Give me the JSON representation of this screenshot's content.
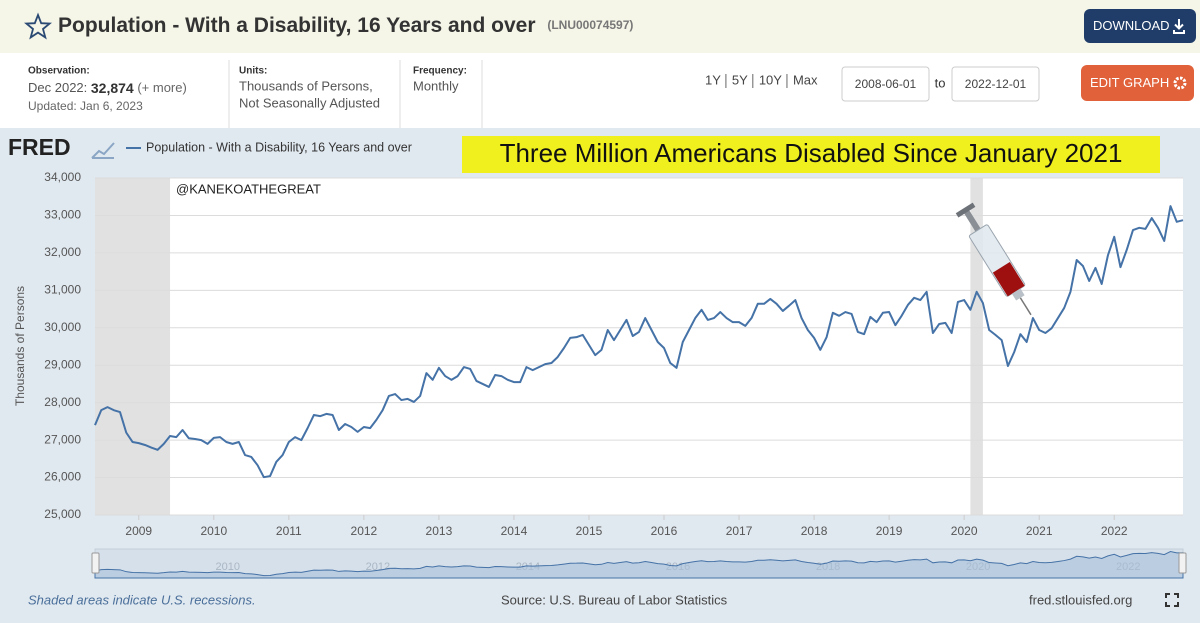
{
  "header": {
    "title": "Population - With a Disability, 16 Years and over",
    "series_id": "(LNU00074597)",
    "download": "DOWNLOAD",
    "observation_label": "Observation:",
    "observation_date": "Dec 2022:",
    "observation_value": "32,874",
    "observation_more": "(+ more)",
    "updated": "Updated: Jan 6, 2023",
    "units_label": "Units:",
    "units": [
      "Thousands of Persons,",
      "Not Seasonally Adjusted"
    ],
    "frequency_label": "Frequency:",
    "frequency": "Monthly",
    "ranges": [
      "1Y",
      "5Y",
      "10Y",
      "Max"
    ],
    "start_date": "2008-06-01",
    "to": "to",
    "end_date": "2022-12-01",
    "edit": "EDIT GRAPH"
  },
  "chart_data": {
    "type": "line",
    "logo": "FRED",
    "title": "Three Million Americans Disabled Since January 2021",
    "watermark": "@KANEKOATHEGREAT",
    "ylabel": "Thousands of Persons",
    "grid": true,
    "x": [
      "2008-06",
      "2008-07",
      "2008-08",
      "2008-09",
      "2008-10",
      "2008-11",
      "2008-12",
      "2009-01",
      "2009-02",
      "2009-03",
      "2009-04",
      "2009-05",
      "2009-06",
      "2009-07",
      "2009-08",
      "2009-09",
      "2009-10",
      "2009-11",
      "2009-12",
      "2010-01",
      "2010-02",
      "2010-03",
      "2010-04",
      "2010-05",
      "2010-06",
      "2010-07",
      "2010-08",
      "2010-09",
      "2010-10",
      "2010-11",
      "2010-12",
      "2011-01",
      "2011-02",
      "2011-03",
      "2011-04",
      "2011-05",
      "2011-06",
      "2011-07",
      "2011-08",
      "2011-09",
      "2011-10",
      "2011-11",
      "2011-12",
      "2012-01",
      "2012-02",
      "2012-03",
      "2012-04",
      "2012-05",
      "2012-06",
      "2012-07",
      "2012-08",
      "2012-09",
      "2012-10",
      "2012-11",
      "2012-12",
      "2013-01",
      "2013-02",
      "2013-03",
      "2013-04",
      "2013-05",
      "2013-06",
      "2013-07",
      "2013-08",
      "2013-09",
      "2013-10",
      "2013-11",
      "2013-12",
      "2014-01",
      "2014-02",
      "2014-03",
      "2014-04",
      "2014-05",
      "2014-06",
      "2014-07",
      "2014-08",
      "2014-09",
      "2014-10",
      "2014-11",
      "2014-12",
      "2015-01",
      "2015-02",
      "2015-03",
      "2015-04",
      "2015-05",
      "2015-06",
      "2015-07",
      "2015-08",
      "2015-09",
      "2015-10",
      "2015-11",
      "2015-12",
      "2016-01",
      "2016-02",
      "2016-03",
      "2016-04",
      "2016-05",
      "2016-06",
      "2016-07",
      "2016-08",
      "2016-09",
      "2016-10",
      "2016-11",
      "2016-12",
      "2017-01",
      "2017-02",
      "2017-03",
      "2017-04",
      "2017-05",
      "2017-06",
      "2017-07",
      "2017-08",
      "2017-09",
      "2017-10",
      "2017-11",
      "2017-12",
      "2018-01",
      "2018-02",
      "2018-03",
      "2018-04",
      "2018-05",
      "2018-06",
      "2018-07",
      "2018-08",
      "2018-09",
      "2018-10",
      "2018-11",
      "2018-12",
      "2019-01",
      "2019-02",
      "2019-03",
      "2019-04",
      "2019-05",
      "2019-06",
      "2019-07",
      "2019-08",
      "2019-09",
      "2019-10",
      "2019-11",
      "2019-12",
      "2020-01",
      "2020-02",
      "2020-03",
      "2020-04",
      "2020-05",
      "2020-06",
      "2020-07",
      "2020-08",
      "2020-09",
      "2020-10",
      "2020-11",
      "2020-12",
      "2021-01",
      "2021-02",
      "2021-03",
      "2021-04",
      "2021-05",
      "2021-06",
      "2021-07",
      "2021-08",
      "2021-09",
      "2021-10",
      "2021-11",
      "2021-12",
      "2022-01",
      "2022-02",
      "2022-03",
      "2022-04",
      "2022-05",
      "2022-06",
      "2022-07",
      "2022-08",
      "2022-09",
      "2022-10",
      "2022-11",
      "2022-12"
    ],
    "series": [
      {
        "name": "Population - With a Disability, 16 Years and over",
        "color": "#4572a7",
        "values": [
          27400,
          27800,
          27880,
          27800,
          27750,
          27200,
          26950,
          26920,
          26870,
          26800,
          26740,
          26900,
          27110,
          27080,
          27270,
          27050,
          27030,
          27000,
          26900,
          27060,
          27080,
          26950,
          26900,
          26950,
          26600,
          26550,
          26330,
          26010,
          26040,
          26420,
          26600,
          26950,
          27080,
          27000,
          27320,
          27670,
          27640,
          27700,
          27670,
          27270,
          27430,
          27350,
          27220,
          27350,
          27320,
          27540,
          27800,
          28180,
          28230,
          28070,
          28100,
          28020,
          28180,
          28790,
          28610,
          28930,
          28710,
          28610,
          28710,
          28950,
          28900,
          28580,
          28500,
          28420,
          28740,
          28710,
          28610,
          28550,
          28550,
          28950,
          28870,
          28950,
          29030,
          29060,
          29220,
          29460,
          29730,
          29750,
          29810,
          29540,
          29270,
          29410,
          29940,
          29670,
          29940,
          30210,
          29780,
          29890,
          30260,
          29940,
          29620,
          29460,
          29060,
          28930,
          29620,
          29940,
          30260,
          30480,
          30210,
          30260,
          30420,
          30260,
          30150,
          30150,
          30050,
          30260,
          30640,
          30640,
          30770,
          30640,
          30450,
          30590,
          30740,
          30260,
          29940,
          29730,
          29410,
          29750,
          30400,
          30320,
          30420,
          30370,
          29890,
          29830,
          30290,
          30150,
          30400,
          30420,
          30070,
          30320,
          30610,
          30800,
          30740,
          30960,
          29860,
          30100,
          30130,
          29860,
          30690,
          30740,
          30480,
          30960,
          30660,
          29940,
          29810,
          29670,
          28980,
          29350,
          29830,
          29620,
          30260,
          29940,
          29860,
          29990,
          30260,
          30530,
          30960,
          31810,
          31650,
          31250,
          31600,
          31170,
          31940,
          32430,
          31620,
          32080,
          32610,
          32670,
          32640,
          32930,
          32670,
          32320,
          33250,
          32830,
          32874
        ]
      }
    ],
    "xlim": [
      "2008-06",
      "2022-12"
    ],
    "xticks": [
      {
        "value": "2009-01",
        "label": "2009"
      },
      {
        "value": "2010-01",
        "label": "2010"
      },
      {
        "value": "2011-01",
        "label": "2011"
      },
      {
        "value": "2012-01",
        "label": "2012"
      },
      {
        "value": "2013-01",
        "label": "2013"
      },
      {
        "value": "2014-01",
        "label": "2014"
      },
      {
        "value": "2015-01",
        "label": "2015"
      },
      {
        "value": "2016-01",
        "label": "2016"
      },
      {
        "value": "2017-01",
        "label": "2017"
      },
      {
        "value": "2018-01",
        "label": "2018"
      },
      {
        "value": "2019-01",
        "label": "2019"
      },
      {
        "value": "2020-01",
        "label": "2020"
      },
      {
        "value": "2021-01",
        "label": "2021"
      },
      {
        "value": "2022-01",
        "label": "2022"
      }
    ],
    "ylim": [
      25000,
      34000
    ],
    "yticks": [
      {
        "value": 25000,
        "label": "25,000"
      },
      {
        "value": 26000,
        "label": "26,000"
      },
      {
        "value": 27000,
        "label": "27,000"
      },
      {
        "value": 28000,
        "label": "28,000"
      },
      {
        "value": 29000,
        "label": "29,000"
      },
      {
        "value": 30000,
        "label": "30,000"
      },
      {
        "value": 31000,
        "label": "31,000"
      },
      {
        "value": 32000,
        "label": "32,000"
      },
      {
        "value": 33000,
        "label": "33,000"
      },
      {
        "value": 34000,
        "label": "34,000"
      }
    ],
    "recessions": [
      {
        "start": "2008-06",
        "end": "2009-06"
      },
      {
        "start": "2020-02",
        "end": "2020-04"
      }
    ],
    "navigator_ticks": [
      {
        "value": "2010-01",
        "label": "2010"
      },
      {
        "value": "2012-01",
        "label": "2012"
      },
      {
        "value": "2014-01",
        "label": "2014"
      },
      {
        "value": "2016-01",
        "label": "2016"
      },
      {
        "value": "2018-01",
        "label": "2018"
      },
      {
        "value": "2020-01",
        "label": "2020"
      },
      {
        "value": "2022-01",
        "label": "2022"
      }
    ]
  },
  "footer": {
    "note": "Shaded areas indicate U.S. recessions.",
    "source": "Source: U.S. Bureau of Labor Statistics",
    "site": "fred.stlouisfed.org"
  }
}
